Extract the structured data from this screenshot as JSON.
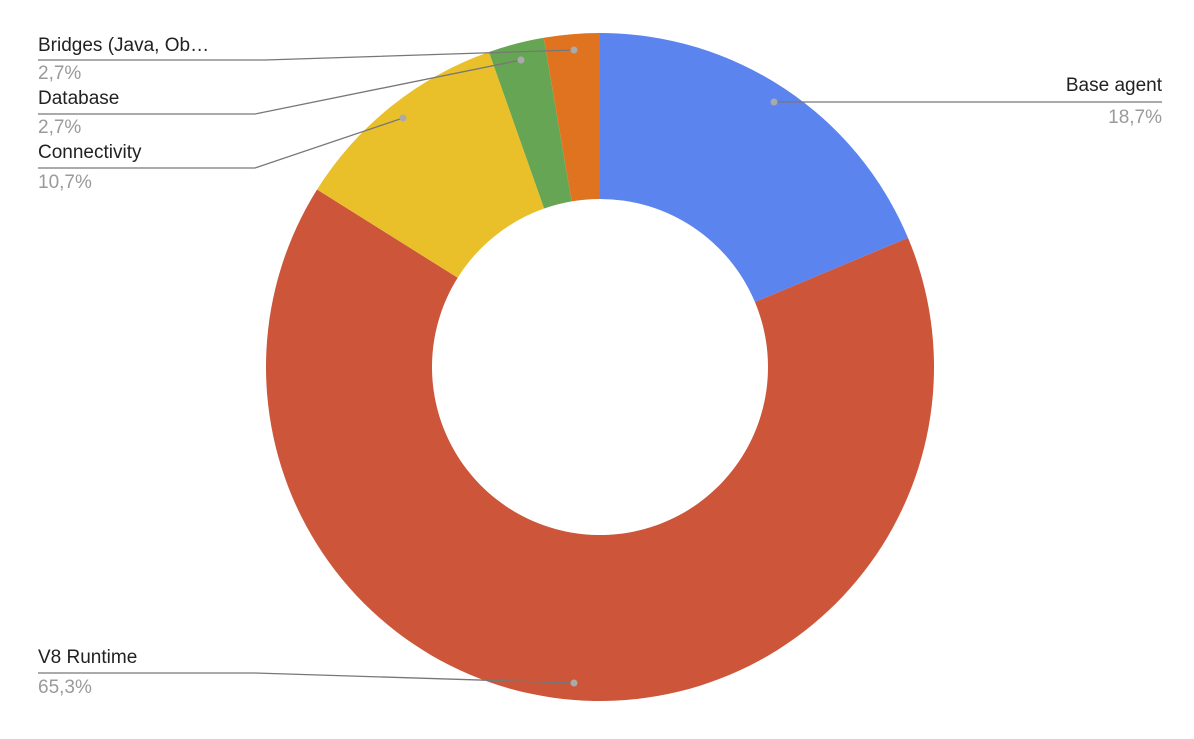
{
  "chart_data": {
    "type": "pie",
    "categories": [
      "Base agent",
      "V8 Runtime",
      "Connectivity",
      "Database",
      "Bridges (Java, Ob…"
    ],
    "values": [
      18.7,
      65.3,
      10.7,
      2.7,
      2.7
    ],
    "value_labels": [
      "18,7%",
      "65,3%",
      "10,7%",
      "2,7%",
      "2,7%"
    ],
    "colors": [
      "#5b84ef",
      "#cc553a",
      "#eac02a",
      "#66a553",
      "#e07320"
    ]
  }
}
